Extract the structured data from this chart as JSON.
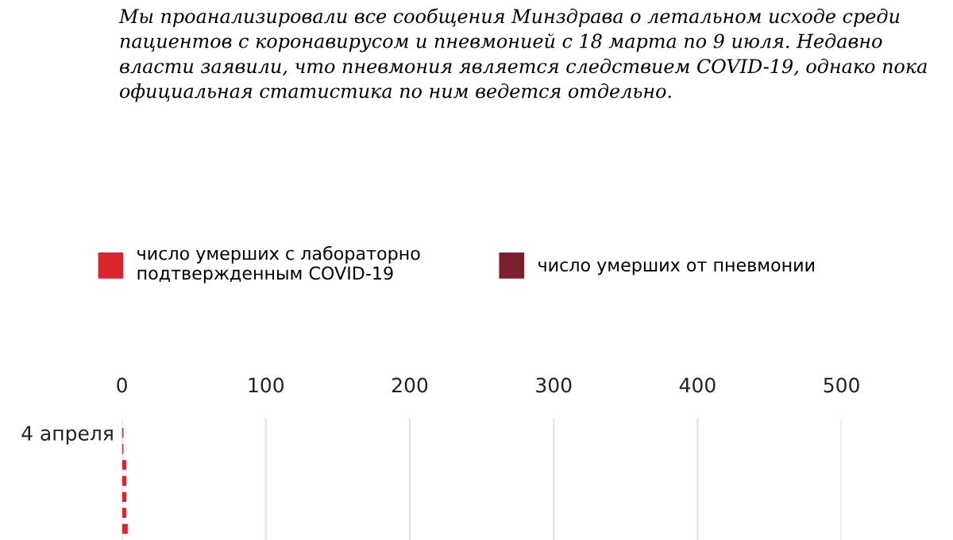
{
  "chart_data": {
    "type": "bar",
    "orientation": "horizontal",
    "title": "Мы проанализировали все сообщения Минздрава о летальном исходе среди пациентов с коронавирусом и пневмонией с 18 марта по 9 июля. Недавно власти заявили, что пневмония является следствием COVID-19, однако пока официальная статистика по ним ведется отдельно.",
    "categories": [
      "4 апреля",
      null,
      null,
      null,
      null,
      null,
      null
    ],
    "series": [
      {
        "name": "число умерших с лабораторно\nподтвержденным COVID-19",
        "color": "#d9262e",
        "values": [
          1,
          1,
          3,
          3,
          3,
          3,
          4
        ]
      },
      {
        "name": "число умерших от пневмонии",
        "color": "#7a1f2b",
        "values": [
          0,
          0,
          0,
          0,
          0,
          0,
          0
        ]
      }
    ],
    "xlim": [
      0,
      500
    ],
    "xticks": [
      0,
      100,
      200,
      300,
      400,
      500
    ],
    "grid": "x",
    "legend": "top"
  }
}
